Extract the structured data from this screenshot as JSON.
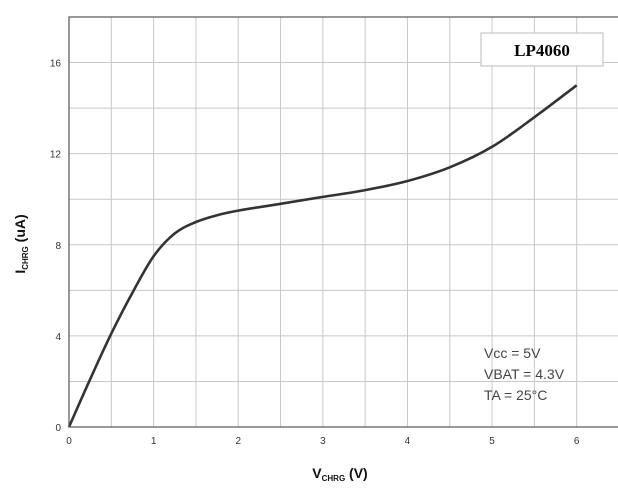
{
  "chart_data": {
    "type": "line",
    "part_number": "LP4060",
    "ylabel": {
      "main": "I",
      "sub": "CHRG",
      "rest": " (uA)"
    },
    "xlabel": {
      "main": "V",
      "sub": "CHRG",
      "rest": " (V)"
    },
    "xlim": [
      0,
      6.5
    ],
    "ylim": [
      0,
      18
    ],
    "xticks": [
      "0",
      "1",
      "2",
      "3",
      "4",
      "5",
      "6"
    ],
    "yticks": [
      "0",
      "4",
      "8",
      "12",
      "16"
    ],
    "grid": true,
    "annotations": [
      "Vcc = 5V",
      "VBAT = 4.3V",
      "TA = 25°C"
    ],
    "series": [
      {
        "x": [
          0,
          0.25,
          0.5,
          0.75,
          1.0,
          1.25,
          1.5,
          1.75,
          2.0,
          2.5,
          3.0,
          3.5,
          4.0,
          4.5,
          5.0,
          5.5,
          6.0
        ],
        "y": [
          0,
          2.1,
          4.1,
          5.9,
          7.5,
          8.5,
          9.0,
          9.3,
          9.5,
          9.8,
          10.1,
          10.4,
          10.8,
          11.4,
          12.3,
          13.6,
          15.0
        ]
      }
    ],
    "colors": {
      "line": "#333333",
      "grid": "#c8c8c8",
      "frame": "#555555"
    }
  }
}
